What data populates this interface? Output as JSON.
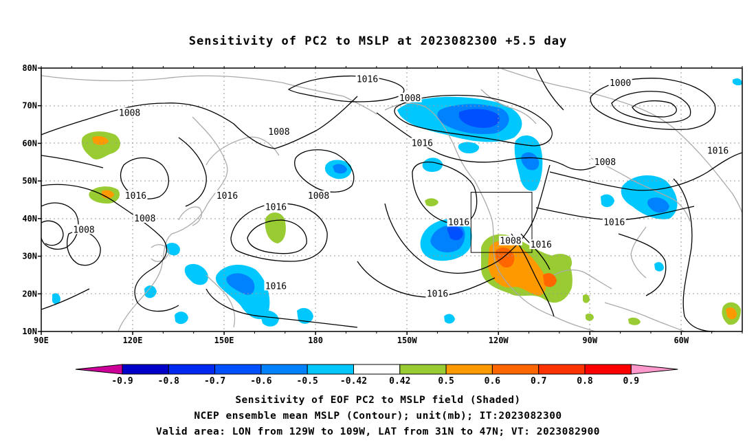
{
  "title": "Sensitivity of PC2 to MSLP at 2023082300 +5.5 day",
  "lat_labels": [
    "80N",
    "70N",
    "60N",
    "50N",
    "40N",
    "30N",
    "20N",
    "10N"
  ],
  "lon_labels": [
    "90E",
    "120E",
    "150E",
    "180",
    "150W",
    "120W",
    "90W",
    "60W"
  ],
  "contour_labels": [
    {
      "text": "1016",
      "lon": 197,
      "lat": 77
    },
    {
      "text": "1008",
      "lon": 211,
      "lat": 72
    },
    {
      "text": "1000",
      "lon": 280,
      "lat": 76
    },
    {
      "text": "1008",
      "lon": 119,
      "lat": 68
    },
    {
      "text": "1008",
      "lon": 168,
      "lat": 63
    },
    {
      "text": "1016",
      "lon": 215,
      "lat": 60
    },
    {
      "text": "1016",
      "lon": 312,
      "lat": 58
    },
    {
      "text": "1008",
      "lon": 275,
      "lat": 55
    },
    {
      "text": "1016",
      "lon": 121,
      "lat": 46
    },
    {
      "text": "1016",
      "lon": 151,
      "lat": 46
    },
    {
      "text": "1008",
      "lon": 181,
      "lat": 46
    },
    {
      "text": "1016",
      "lon": 167,
      "lat": 43
    },
    {
      "text": "1008",
      "lon": 124,
      "lat": 40
    },
    {
      "text": "1008",
      "lon": 104,
      "lat": 37
    },
    {
      "text": "1016",
      "lon": 227,
      "lat": 39
    },
    {
      "text": "1008",
      "lon": 244,
      "lat": 34
    },
    {
      "text": "1016",
      "lon": 254,
      "lat": 33
    },
    {
      "text": "1016",
      "lon": 278,
      "lat": 39
    },
    {
      "text": "1016",
      "lon": 167,
      "lat": 22
    },
    {
      "text": "1016",
      "lon": 220,
      "lat": 20
    }
  ],
  "colorbar": {
    "labels": [
      "-0.9",
      "-0.8",
      "-0.7",
      "-0.6",
      "-0.5",
      "-0.42",
      "0.42",
      "0.5",
      "0.6",
      "0.7",
      "0.8",
      "0.9"
    ],
    "colors": [
      "#cc0099",
      "#0000c8",
      "#0028f0",
      "#0050ff",
      "#0082ff",
      "#00c8ff",
      "#ffffff",
      "#99cc33",
      "#ff9900",
      "#ff6600",
      "#ff3300",
      "#ff0000",
      "#ff99cc"
    ]
  },
  "valid_area": {
    "lon_range": [
      231,
      251
    ],
    "lat_range": [
      31,
      47
    ]
  },
  "captions": [
    "Sensitivity of EOF PC2 to MSLP field (Shaded)",
    "NCEP ensemble mean MSLP (Contour); unit(mb); IT:2023082300",
    "Valid area: LON from 129W to 109W, LAT from 31N to 47N; VT: 2023082900"
  ]
}
